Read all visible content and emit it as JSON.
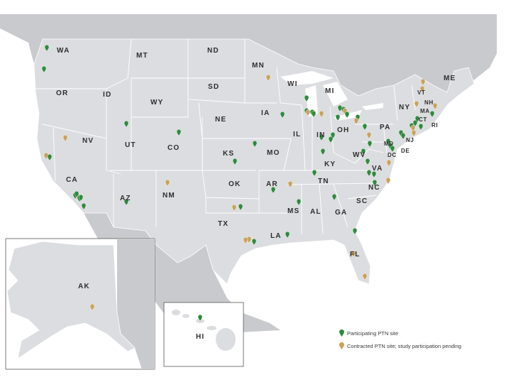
{
  "colors": {
    "ocean": "#ffffff",
    "land_foreign": "#c9cacd",
    "land_us": "#dcdde0",
    "border": "#ffffff",
    "participating": "#2e8b3e",
    "pending": "#c9a25a"
  },
  "state_labels": [
    "WA",
    "MT",
    "ND",
    "MN",
    "ME",
    "OR",
    "ID",
    "SD",
    "WI",
    "MI",
    "VT",
    "NH",
    "NY",
    "MA",
    "WY",
    "IA",
    "CT",
    "RI",
    "NE",
    "PA",
    "NV",
    "UT",
    "CO",
    "IL",
    "IN",
    "OH",
    "NJ",
    "MD",
    "DE",
    "DC",
    "KS",
    "MO",
    "WV",
    "KY",
    "VA",
    "CA",
    "OK",
    "AR",
    "TN",
    "NC",
    "AZ",
    "NM",
    "SC",
    "MS",
    "AL",
    "GA",
    "TX",
    "LA",
    "FL",
    "AK",
    "HI"
  ],
  "legend": {
    "participating": "Participating PTN site",
    "pending": "Contracted PTN site; study participation pending"
  },
  "marker_types": [
    "participating",
    "pending"
  ]
}
